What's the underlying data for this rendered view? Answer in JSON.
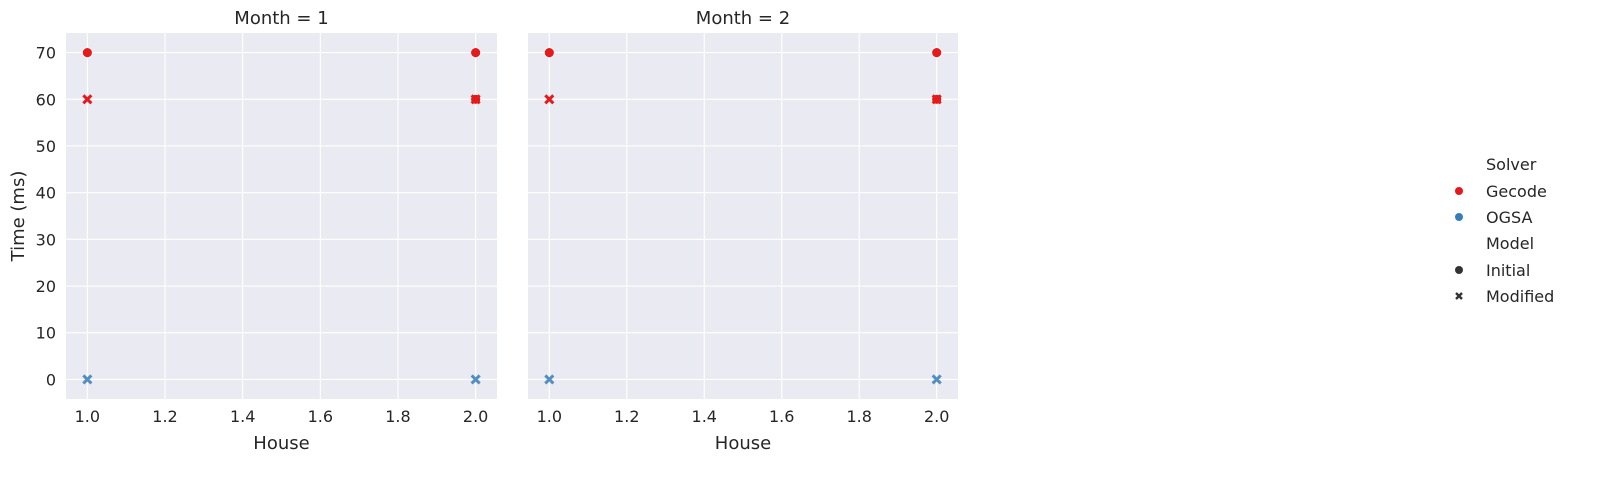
{
  "chart_data": {
    "type": "scatter",
    "facet_variable": "Month",
    "panels": [
      {
        "title": "Month = 1",
        "points": [
          {
            "house": 1.0,
            "time": 70,
            "solver": "Gecode",
            "model": "Initial"
          },
          {
            "house": 1.0,
            "time": 60,
            "solver": "Gecode",
            "model": "Modified"
          },
          {
            "house": 1.0,
            "time": 0,
            "solver": "OGSA",
            "model": "Modified"
          },
          {
            "house": 2.0,
            "time": 70,
            "solver": "Gecode",
            "model": "Initial"
          },
          {
            "house": 2.0,
            "time": 60,
            "solver": "Gecode",
            "model": "Initial"
          },
          {
            "house": 2.0,
            "time": 60,
            "solver": "Gecode",
            "model": "Modified"
          },
          {
            "house": 2.0,
            "time": 0,
            "solver": "OGSA",
            "model": "Modified"
          }
        ]
      },
      {
        "title": "Month = 2",
        "points": [
          {
            "house": 1.0,
            "time": 70,
            "solver": "Gecode",
            "model": "Initial"
          },
          {
            "house": 1.0,
            "time": 60,
            "solver": "Gecode",
            "model": "Modified"
          },
          {
            "house": 1.0,
            "time": 0,
            "solver": "OGSA",
            "model": "Modified"
          },
          {
            "house": 2.0,
            "time": 70,
            "solver": "Gecode",
            "model": "Initial"
          },
          {
            "house": 2.0,
            "time": 60,
            "solver": "Gecode",
            "model": "Initial"
          },
          {
            "house": 2.0,
            "time": 60,
            "solver": "Gecode",
            "model": "Modified"
          },
          {
            "house": 2.0,
            "time": 0,
            "solver": "OGSA",
            "model": "Modified"
          }
        ]
      }
    ],
    "xlabel": "House",
    "ylabel": "Time (ms)",
    "xlim": [
      0.945,
      2.055
    ],
    "ylim": [
      -4.2,
      74.2
    ],
    "xticks": [
      "1.0",
      "1.2",
      "1.4",
      "1.6",
      "1.8",
      "2.0"
    ],
    "yticks": [
      "0",
      "10",
      "20",
      "30",
      "40",
      "50",
      "60",
      "70"
    ],
    "grid": true,
    "legend_position": "right",
    "legend": {
      "hue_title": "Solver",
      "hue": [
        {
          "name": "Gecode",
          "color": "#e41a1c"
        },
        {
          "name": "OGSA",
          "color": "#377eb8"
        }
      ],
      "style_title": "Model",
      "style": [
        {
          "name": "Initial",
          "marker": "circle"
        },
        {
          "name": "Modified",
          "marker": "x"
        }
      ]
    },
    "colors": {
      "panel_background": "#eaeaf2",
      "grid": "#ffffff",
      "legend_marker": "#333333"
    }
  }
}
